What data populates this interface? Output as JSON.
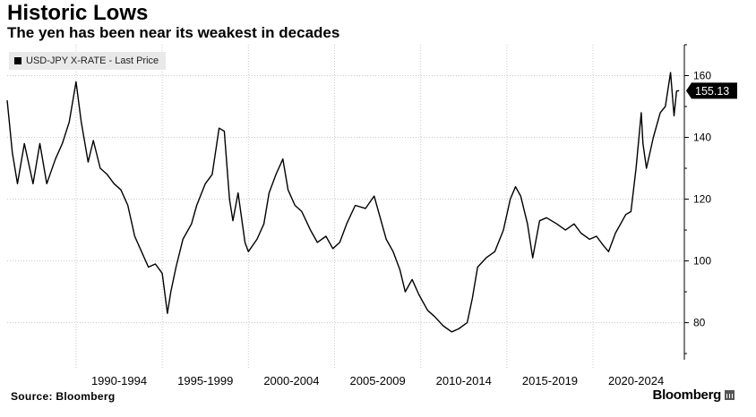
{
  "title": "Historic Lows",
  "subtitle": "The yen has been near its weakest in decades",
  "legend_label": "USD-JPY X-RATE - Last Price",
  "source": "Source: Bloomberg",
  "brand": "Bloomberg",
  "colors": {
    "line": "#000000",
    "grid": "#c8c8c8",
    "axis": "#000000",
    "callout_bg": "#000000",
    "callout_text": "#ffffff",
    "legend_bg": "#e9e9e9"
  },
  "chart_data": {
    "type": "line",
    "title": "Historic Lows",
    "subtitle": "The yen has been near its weakest in decades",
    "series": [
      {
        "name": "USD-JPY X-RATE - Last Price",
        "x": [
          1986.0,
          1986.3,
          1986.6,
          1987.0,
          1987.5,
          1987.9,
          1988.3,
          1988.8,
          1989.2,
          1989.6,
          1990.0,
          1990.3,
          1990.7,
          1991.0,
          1991.4,
          1991.8,
          1992.2,
          1992.6,
          1993.0,
          1993.4,
          1993.8,
          1994.2,
          1994.6,
          1995.0,
          1995.3,
          1995.5,
          1995.8,
          1996.2,
          1996.7,
          1997.0,
          1997.5,
          1997.9,
          1998.3,
          1998.6,
          1998.9,
          1999.1,
          1999.4,
          1999.8,
          2000.0,
          2000.5,
          2000.9,
          2001.2,
          2001.6,
          2002.0,
          2002.3,
          2002.7,
          2003.1,
          2003.6,
          2004.0,
          2004.5,
          2004.9,
          2005.3,
          2005.7,
          2006.2,
          2006.8,
          2007.3,
          2007.6,
          2008.0,
          2008.4,
          2008.8,
          2009.1,
          2009.5,
          2009.9,
          2010.4,
          2010.8,
          2011.3,
          2011.8,
          2012.2,
          2012.7,
          2013.0,
          2013.3,
          2013.8,
          2014.3,
          2014.8,
          2015.2,
          2015.5,
          2015.8,
          2016.2,
          2016.5,
          2016.9,
          2017.3,
          2017.9,
          2018.4,
          2018.9,
          2019.3,
          2019.8,
          2020.2,
          2020.6,
          2020.9,
          2021.3,
          2021.9,
          2022.2,
          2022.5,
          2022.8,
          2022.9,
          2023.1,
          2023.5,
          2023.9,
          2024.2,
          2024.5,
          2024.7,
          2024.85,
          2025.0
        ],
        "values": [
          152,
          135,
          125,
          138,
          125,
          138,
          125,
          133,
          138,
          145,
          158,
          145,
          132,
          139,
          130,
          128,
          125,
          123,
          118,
          108,
          103,
          98,
          99,
          96,
          83,
          90,
          98,
          107,
          112,
          118,
          125,
          128,
          143,
          142,
          120,
          113,
          122,
          106,
          103,
          107,
          112,
          122,
          128,
          133,
          123,
          118,
          116,
          110,
          106,
          108,
          104,
          106,
          112,
          118,
          117,
          121,
          115,
          107,
          103,
          97,
          90,
          94,
          89,
          84,
          82,
          79,
          77,
          78,
          80,
          88,
          98,
          101,
          103,
          110,
          120,
          124,
          121,
          112,
          101,
          113,
          114,
          112,
          110,
          112,
          109,
          107,
          108,
          105,
          103,
          109,
          115,
          116,
          130,
          148,
          138,
          130,
          140,
          148,
          150,
          161,
          147,
          155,
          155.13
        ]
      }
    ],
    "xlabel": "",
    "ylabel": "",
    "x_ticks": [
      {
        "label": "1990-1994",
        "at": 1992.5
      },
      {
        "label": "1995-1999",
        "at": 1997.5
      },
      {
        "label": "2000-2004",
        "at": 2002.5
      },
      {
        "label": "2005-2009",
        "at": 2007.5
      },
      {
        "label": "2010-2014",
        "at": 2012.5
      },
      {
        "label": "2015-2019",
        "at": 2017.5
      },
      {
        "label": "2020-2024",
        "at": 2022.5
      }
    ],
    "x_separators": [
      1990,
      1995,
      2000,
      2005,
      2010,
      2015,
      2020
    ],
    "y_ticks": [
      80,
      100,
      120,
      140,
      160
    ],
    "xlim": [
      1986,
      2025.3
    ],
    "ylim": [
      68,
      170
    ],
    "grid": true,
    "y_axis_side": "right",
    "last_value_label": "155.13",
    "legend_position": "top-left"
  }
}
